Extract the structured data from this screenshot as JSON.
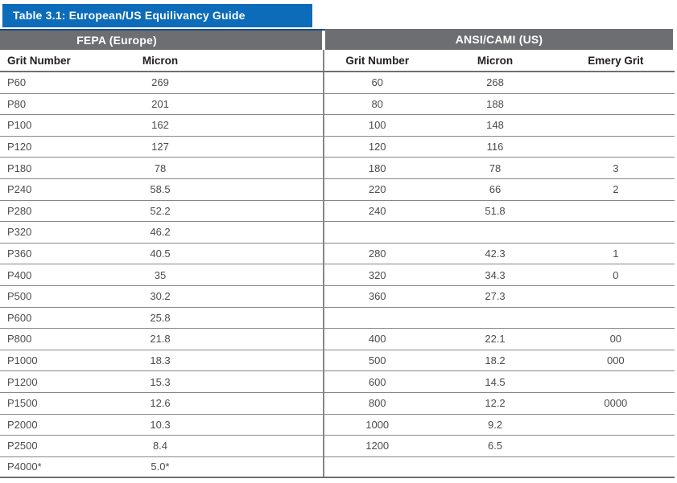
{
  "title": "Table 3.1: European/US Equilivancy Guide",
  "sections": {
    "left": "FEPA (Europe)",
    "right": "ANSI/CAMI (US)"
  },
  "columns": {
    "fepa_grit": "Grit Number",
    "fepa_micron": "Micron",
    "us_grit": "Grit Number",
    "us_micron": "Micron",
    "us_emery": "Emery Grit"
  },
  "colors": {
    "title_bar": "#0c6cba",
    "title_bar_edge": "#174e87",
    "section_bar": "#6d6e71",
    "row_line": "#85878a",
    "thick_line": "#6e6f72",
    "header_text": "#232021",
    "cell_text": "#4b4c4e"
  },
  "rows": [
    {
      "fepa_grit": "P60",
      "fepa_micron": "269",
      "us_grit": "60",
      "us_micron": "268",
      "us_emery": ""
    },
    {
      "fepa_grit": "P80",
      "fepa_micron": "201",
      "us_grit": "80",
      "us_micron": "188",
      "us_emery": ""
    },
    {
      "fepa_grit": "P100",
      "fepa_micron": "162",
      "us_grit": "100",
      "us_micron": "148",
      "us_emery": ""
    },
    {
      "fepa_grit": "P120",
      "fepa_micron": "127",
      "us_grit": "120",
      "us_micron": "116",
      "us_emery": ""
    },
    {
      "fepa_grit": "P180",
      "fepa_micron": "78",
      "us_grit": "180",
      "us_micron": "78",
      "us_emery": "3"
    },
    {
      "fepa_grit": "P240",
      "fepa_micron": "58.5",
      "us_grit": "220",
      "us_micron": "66",
      "us_emery": "2"
    },
    {
      "fepa_grit": "P280",
      "fepa_micron": "52.2",
      "us_grit": "240",
      "us_micron": "51.8",
      "us_emery": ""
    },
    {
      "fepa_grit": "P320",
      "fepa_micron": "46.2",
      "us_grit": "",
      "us_micron": "",
      "us_emery": ""
    },
    {
      "fepa_grit": "P360",
      "fepa_micron": "40.5",
      "us_grit": "280",
      "us_micron": "42.3",
      "us_emery": "1"
    },
    {
      "fepa_grit": "P400",
      "fepa_micron": "35",
      "us_grit": "320",
      "us_micron": "34.3",
      "us_emery": "0"
    },
    {
      "fepa_grit": "P500",
      "fepa_micron": "30.2",
      "us_grit": "360",
      "us_micron": "27.3",
      "us_emery": ""
    },
    {
      "fepa_grit": "P600",
      "fepa_micron": "25.8",
      "us_grit": "",
      "us_micron": "",
      "us_emery": ""
    },
    {
      "fepa_grit": "P800",
      "fepa_micron": "21.8",
      "us_grit": "400",
      "us_micron": "22.1",
      "us_emery": "00"
    },
    {
      "fepa_grit": "P1000",
      "fepa_micron": "18.3",
      "us_grit": "500",
      "us_micron": "18.2",
      "us_emery": "000"
    },
    {
      "fepa_grit": "P1200",
      "fepa_micron": "15.3",
      "us_grit": "600",
      "us_micron": "14.5",
      "us_emery": ""
    },
    {
      "fepa_grit": "P1500",
      "fepa_micron": "12.6",
      "us_grit": "800",
      "us_micron": "12.2",
      "us_emery": "0000"
    },
    {
      "fepa_grit": "P2000",
      "fepa_micron": "10.3",
      "us_grit": "1000",
      "us_micron": "9.2",
      "us_emery": ""
    },
    {
      "fepa_grit": "P2500",
      "fepa_micron": "8.4",
      "us_grit": "1200",
      "us_micron": "6.5",
      "us_emery": ""
    },
    {
      "fepa_grit": "P4000*",
      "fepa_micron": "5.0*",
      "us_grit": "",
      "us_micron": "",
      "us_emery": ""
    }
  ]
}
